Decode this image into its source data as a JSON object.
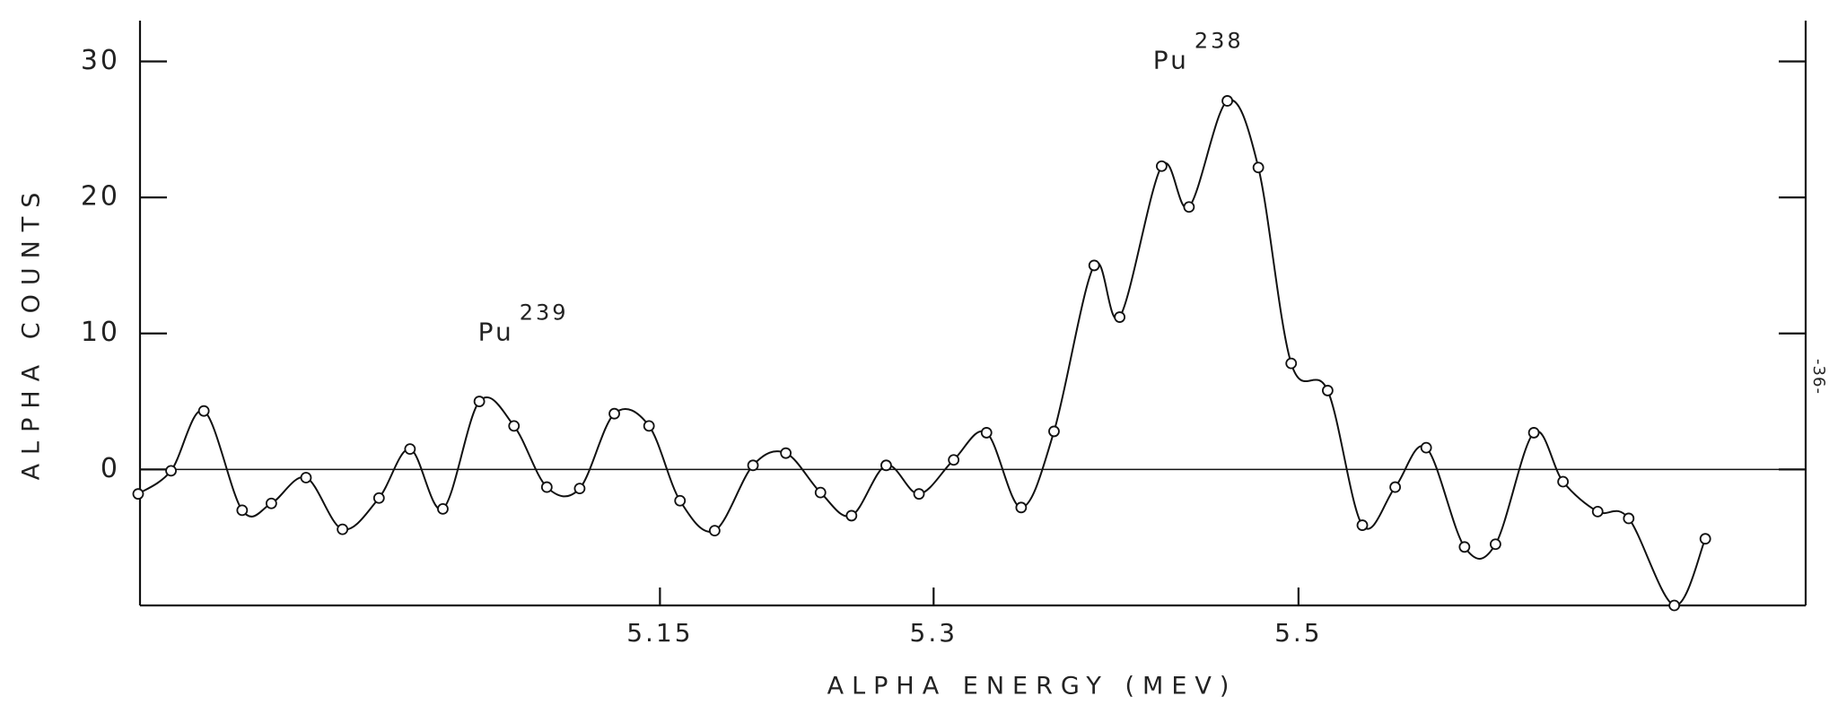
{
  "chart_data": {
    "type": "line",
    "xlabel": "ALPHA ENERGY (MEV)",
    "ylabel": "ALPHA COUNTS",
    "page_number": "-36-",
    "annotations": [
      {
        "text": "Pu",
        "sup": "239",
        "x": 5.07,
        "y": 10
      },
      {
        "text": "Pu",
        "sup": "238",
        "x": 5.44,
        "y": 30
      }
    ],
    "xlim": [
      4.865,
      5.778
    ],
    "ylim": [
      -10,
      33
    ],
    "xticks": [
      5.15,
      5.3,
      5.5
    ],
    "yticks": [
      0,
      10,
      20,
      30
    ],
    "color": "#111111",
    "x": [
      4.864,
      4.882,
      4.9,
      4.921,
      4.937,
      4.956,
      4.976,
      4.996,
      5.013,
      5.031,
      5.051,
      5.07,
      5.088,
      5.106,
      5.125,
      5.144,
      5.161,
      5.18,
      5.201,
      5.219,
      5.238,
      5.255,
      5.274,
      5.292,
      5.311,
      5.329,
      5.348,
      5.366,
      5.388,
      5.402,
      5.425,
      5.44,
      5.461,
      5.478,
      5.496,
      5.516,
      5.535,
      5.553,
      5.57,
      5.591,
      5.608,
      5.629,
      5.645,
      5.664,
      5.681,
      5.706,
      5.723
    ],
    "values": [
      -1.8,
      -0.1,
      4.3,
      -3.0,
      -2.5,
      -0.6,
      -4.4,
      -2.1,
      1.5,
      -2.9,
      5.0,
      3.2,
      -1.3,
      -1.4,
      4.1,
      3.2,
      -2.3,
      -4.5,
      0.3,
      1.2,
      -1.7,
      -3.4,
      0.3,
      -1.8,
      0.7,
      2.7,
      -2.8,
      2.8,
      15.0,
      11.2,
      22.3,
      19.3,
      27.1,
      22.2,
      7.8,
      5.8,
      -4.1,
      -1.3,
      1.6,
      -5.7,
      -5.5,
      2.7,
      -0.9,
      -3.1,
      -3.6,
      -10,
      -5.1
    ]
  }
}
